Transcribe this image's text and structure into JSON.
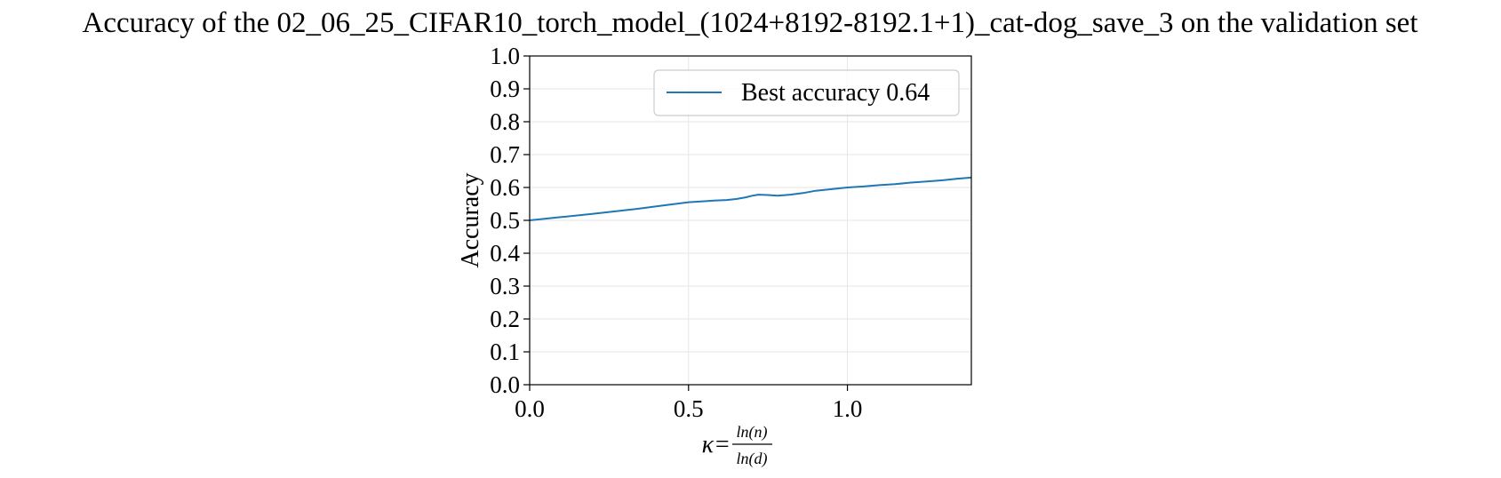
{
  "chart_data": {
    "type": "line",
    "title": "Accuracy of the 02_06_25_CIFAR10_torch_model_(1024+8192-8192.1+1)_cat-dog_save_3 on the validation set",
    "xlabel_prefix": "κ=",
    "xlabel_num": "ln(n)",
    "xlabel_den": "ln(d)",
    "ylabel": "Accuracy",
    "xlim": [
      0.0,
      1.39
    ],
    "ylim": [
      0.0,
      1.0
    ],
    "xticks": [
      0.0,
      0.5,
      1.0
    ],
    "xtick_labels": [
      "0.0",
      "0.5",
      "1.0"
    ],
    "yticks": [
      0.0,
      0.1,
      0.2,
      0.3,
      0.4,
      0.5,
      0.6,
      0.7,
      0.8,
      0.9,
      1.0
    ],
    "ytick_labels": [
      "0.0",
      "0.1",
      "0.2",
      "0.3",
      "0.4",
      "0.5",
      "0.6",
      "0.7",
      "0.8",
      "0.9",
      "1.0"
    ],
    "grid": true,
    "legend_position": "top-right",
    "series": [
      {
        "name": "Best accuracy 0.64",
        "color": "#1f77b4",
        "x": [
          0.0,
          0.1,
          0.2,
          0.34,
          0.42,
          0.5,
          0.55,
          0.58,
          0.62,
          0.65,
          0.68,
          0.7,
          0.72,
          0.75,
          0.78,
          0.82,
          0.86,
          0.9,
          0.95,
          1.0,
          1.05,
          1.1,
          1.15,
          1.2,
          1.25,
          1.3,
          1.35,
          1.39
        ],
        "y": [
          0.5,
          0.51,
          0.52,
          0.535,
          0.545,
          0.555,
          0.558,
          0.56,
          0.562,
          0.565,
          0.57,
          0.575,
          0.578,
          0.577,
          0.575,
          0.578,
          0.583,
          0.59,
          0.595,
          0.6,
          0.603,
          0.607,
          0.61,
          0.615,
          0.618,
          0.622,
          0.627,
          0.63
        ]
      }
    ]
  }
}
